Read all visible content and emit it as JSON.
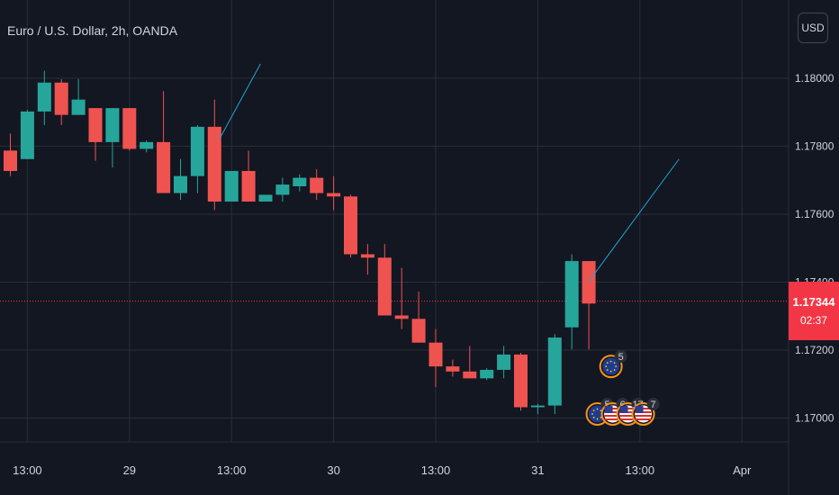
{
  "symbol": {
    "title": "Euro / U.S. Dollar, 2h, OANDA"
  },
  "currency_button": {
    "label": "USD"
  },
  "current_price": {
    "value": "1.17344",
    "countdown": "02:37"
  },
  "colors": {
    "background": "#131722",
    "grid": "#2a2e39",
    "up": "#26a69a",
    "down": "#ef5350",
    "text": "#d1d4dc",
    "trend_line": "#22a6d0",
    "price_line": "#f23645"
  },
  "chart_data": {
    "type": "candlestick",
    "title": "Euro / U.S. Dollar, 2h, OANDA",
    "ylim": [
      1.1693,
      1.1823
    ],
    "y_ticks": [
      {
        "value": 1.18,
        "label": "1.18000"
      },
      {
        "value": 1.178,
        "label": "1.17800"
      },
      {
        "value": 1.176,
        "label": "1.17600"
      },
      {
        "value": 1.174,
        "label": "1.17400"
      },
      {
        "value": 1.172,
        "label": "1.17200"
      },
      {
        "value": 1.17,
        "label": "1.17000"
      }
    ],
    "x_ticks": [
      {
        "index": 1,
        "label": "13:00"
      },
      {
        "index": 7,
        "label": "29"
      },
      {
        "index": 13,
        "label": "13:00"
      },
      {
        "index": 19,
        "label": "30"
      },
      {
        "index": 25,
        "label": "13:00"
      },
      {
        "index": 31,
        "label": "31"
      },
      {
        "index": 37,
        "label": "13:00"
      },
      {
        "index": 43,
        "label": "Apr"
      }
    ],
    "candles": [
      {
        "o": 1.17787,
        "h": 1.17837,
        "l": 1.17712,
        "c": 1.17727
      },
      {
        "o": 1.17762,
        "h": 1.17907,
        "l": 1.17762,
        "c": 1.17902
      },
      {
        "o": 1.17902,
        "h": 1.18022,
        "l": 1.17862,
        "c": 1.17987
      },
      {
        "o": 1.17987,
        "h": 1.17997,
        "l": 1.17862,
        "c": 1.17892
      },
      {
        "o": 1.17892,
        "h": 1.17997,
        "l": 1.17892,
        "c": 1.17937
      },
      {
        "o": 1.17912,
        "h": 1.17912,
        "l": 1.17757,
        "c": 1.17812
      },
      {
        "o": 1.17812,
        "h": 1.17912,
        "l": 1.17737,
        "c": 1.17912
      },
      {
        "o": 1.17912,
        "h": 1.17912,
        "l": 1.17787,
        "c": 1.17792
      },
      {
        "o": 1.17792,
        "h": 1.17817,
        "l": 1.17782,
        "c": 1.17812
      },
      {
        "o": 1.17812,
        "h": 1.17962,
        "l": 1.17662,
        "c": 1.17662
      },
      {
        "o": 1.17662,
        "h": 1.17762,
        "l": 1.17642,
        "c": 1.17712
      },
      {
        "o": 1.17712,
        "h": 1.17862,
        "l": 1.17662,
        "c": 1.17857
      },
      {
        "o": 1.17857,
        "h": 1.17937,
        "l": 1.17612,
        "c": 1.17637
      },
      {
        "o": 1.17637,
        "h": 1.17717,
        "l": 1.17637,
        "c": 1.17727
      },
      {
        "o": 1.17727,
        "h": 1.17787,
        "l": 1.17637,
        "c": 1.17637
      },
      {
        "o": 1.17637,
        "h": 1.17652,
        "l": 1.17637,
        "c": 1.17657
      },
      {
        "o": 1.17657,
        "h": 1.17707,
        "l": 1.17637,
        "c": 1.17687
      },
      {
        "o": 1.17682,
        "h": 1.17717,
        "l": 1.17667,
        "c": 1.17707
      },
      {
        "o": 1.17707,
        "h": 1.17732,
        "l": 1.17642,
        "c": 1.17662
      },
      {
        "o": 1.17662,
        "h": 1.17712,
        "l": 1.17612,
        "c": 1.17652
      },
      {
        "o": 1.17652,
        "h": 1.17657,
        "l": 1.17472,
        "c": 1.17482
      },
      {
        "o": 1.17482,
        "h": 1.17512,
        "l": 1.17422,
        "c": 1.17472
      },
      {
        "o": 1.17472,
        "h": 1.17512,
        "l": 1.17302,
        "c": 1.17302
      },
      {
        "o": 1.17302,
        "h": 1.17442,
        "l": 1.17262,
        "c": 1.17292
      },
      {
        "o": 1.17292,
        "h": 1.17372,
        "l": 1.17222,
        "c": 1.17222
      },
      {
        "o": 1.17222,
        "h": 1.17262,
        "l": 1.17092,
        "c": 1.17152
      },
      {
        "o": 1.17152,
        "h": 1.17172,
        "l": 1.17122,
        "c": 1.17137
      },
      {
        "o": 1.17137,
        "h": 1.17212,
        "l": 1.17127,
        "c": 1.17117
      },
      {
        "o": 1.17117,
        "h": 1.17147,
        "l": 1.17112,
        "c": 1.17142
      },
      {
        "o": 1.17142,
        "h": 1.17212,
        "l": 1.17117,
        "c": 1.17187
      },
      {
        "o": 1.17187,
        "h": 1.17192,
        "l": 1.17022,
        "c": 1.17032
      },
      {
        "o": 1.17032,
        "h": 1.17042,
        "l": 1.17012,
        "c": 1.17037
      },
      {
        "o": 1.17037,
        "h": 1.17247,
        "l": 1.17012,
        "c": 1.17237
      },
      {
        "o": 1.17267,
        "h": 1.17482,
        "l": 1.17202,
        "c": 1.17462
      },
      {
        "o": 1.17462,
        "h": 1.17462,
        "l": 1.17202,
        "c": 1.17337
      }
    ],
    "trend_lines": [
      {
        "from_index": 12.3,
        "from_price": 1.17822,
        "to_index": 14.7,
        "to_price": 1.18042
      },
      {
        "from_index": 34.0,
        "from_price": 1.17402,
        "to_index": 39.3,
        "to_price": 1.17762
      }
    ],
    "current_price_line": 1.17344,
    "events": [
      {
        "index": 35.3,
        "price": 1.17152,
        "count": "5",
        "flag": "eu"
      },
      {
        "index": 34.5,
        "price": 1.17012,
        "count": "5",
        "flag": "eu"
      },
      {
        "index": 35.4,
        "price": 1.17012,
        "count": "6",
        "flag": "us"
      },
      {
        "index": 36.3,
        "price": 1.17012,
        "count": "17",
        "flag": "us"
      },
      {
        "index": 37.2,
        "price": 1.17012,
        "count": "7",
        "flag": "us"
      }
    ]
  }
}
